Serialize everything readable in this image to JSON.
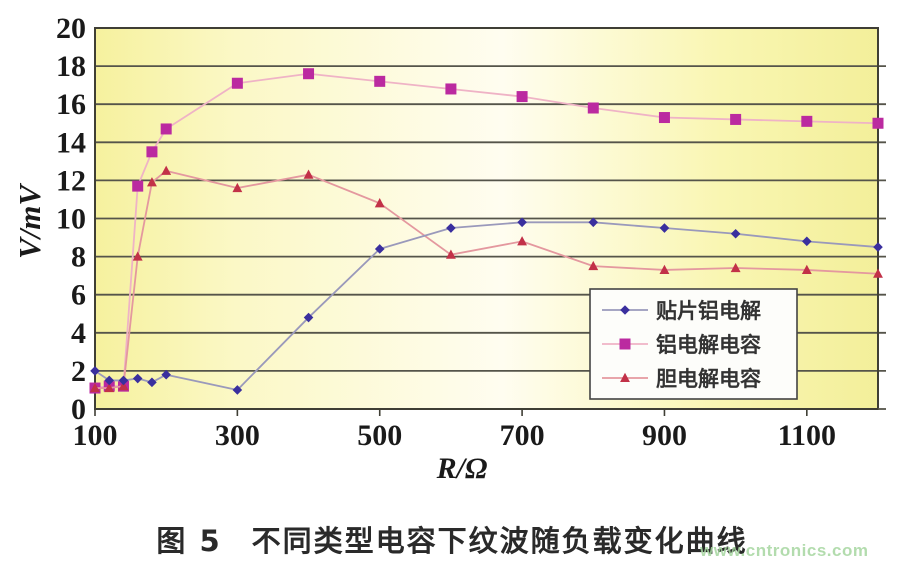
{
  "figure": {
    "caption_prefix": "图 5",
    "caption_text": "不同类型电容下纹波随负载变化曲线",
    "watermark": "www.cntronics.com"
  },
  "colors": {
    "plot_fill_left": "#f6f19e",
    "plot_fill_mid": "#fffdf0",
    "plot_fill_right": "#f3ef9a",
    "grid": "#55544a",
    "plot_border": "#3f3e35",
    "axis_text": "#1a1a1a",
    "legend_border": "#444444",
    "legend_fill": "#fdfdfa",
    "legend_text": "#333333",
    "caption": "#2a2a2a",
    "watermark": "#a6d7a0"
  },
  "chart_data": {
    "type": "line",
    "title": "",
    "xlabel": "R/Ω",
    "ylabel": "V/mV",
    "xlim": [
      100,
      1200
    ],
    "ylim": [
      0,
      20
    ],
    "x_ticks": [
      100,
      300,
      500,
      700,
      900,
      1100
    ],
    "y_tick_min": 0,
    "y_tick_max": 20,
    "y_tick_step": 2,
    "grid": "horizontal",
    "legend_position": "inside-right",
    "x": [
      100,
      120,
      140,
      160,
      180,
      200,
      300,
      400,
      500,
      600,
      700,
      800,
      900,
      1000,
      1100,
      1200
    ],
    "series": [
      {
        "name": "贴片铝电解",
        "marker": "diamond",
        "marker_color": "#3a2f9e",
        "line_color": "#9a99bb",
        "values": [
          2.0,
          1.5,
          1.5,
          1.6,
          1.4,
          1.8,
          1.0,
          4.8,
          8.4,
          9.5,
          9.8,
          9.8,
          9.5,
          9.2,
          8.8,
          8.5
        ]
      },
      {
        "name": "铝电解电容",
        "marker": "square",
        "marker_color": "#bb2aa0",
        "line_color": "#efb3c6",
        "values": [
          1.1,
          1.2,
          1.2,
          11.7,
          13.5,
          14.7,
          17.1,
          17.6,
          17.2,
          16.8,
          16.4,
          15.8,
          15.3,
          15.2,
          15.1,
          15.0
        ]
      },
      {
        "name": "胆电解电容",
        "marker": "triangle",
        "marker_color": "#c23148",
        "line_color": "#e4989f",
        "values": [
          1.1,
          1.1,
          1.2,
          8.0,
          11.9,
          12.5,
          11.6,
          12.3,
          10.8,
          8.1,
          8.8,
          7.5,
          7.3,
          7.4,
          7.3,
          7.1
        ]
      }
    ]
  }
}
